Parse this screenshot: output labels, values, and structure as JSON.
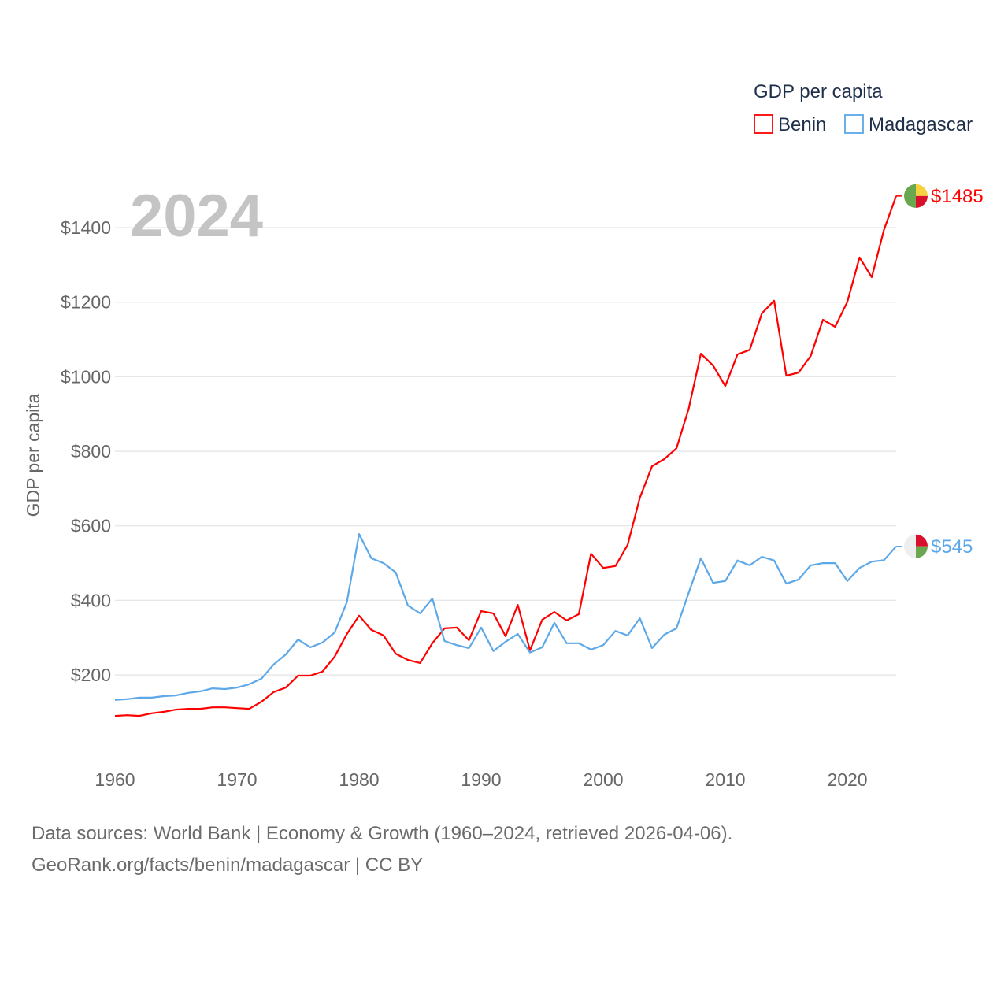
{
  "chart_data": {
    "type": "line",
    "title": "GDP per capita",
    "ylabel": "GDP per capita",
    "xlabel": "",
    "watermark_year": "2024",
    "ylim": [
      0,
      1500
    ],
    "xlim": [
      1960,
      2024
    ],
    "yticks": [
      200,
      400,
      600,
      800,
      1000,
      1200,
      1400
    ],
    "ytick_labels": [
      "$200",
      "$400",
      "$600",
      "$800",
      "$1000",
      "$1200",
      "$1400"
    ],
    "xticks": [
      1960,
      1970,
      1980,
      1990,
      2000,
      2010,
      2020
    ],
    "xtick_labels": [
      "1960",
      "1970",
      "1980",
      "1990",
      "2000",
      "2010",
      "2020"
    ],
    "grid": true,
    "legend_position": "top-right",
    "legend_title": "GDP per capita",
    "x": [
      1960,
      1961,
      1962,
      1963,
      1964,
      1965,
      1966,
      1967,
      1968,
      1969,
      1970,
      1971,
      1972,
      1973,
      1974,
      1975,
      1976,
      1977,
      1978,
      1979,
      1980,
      1981,
      1982,
      1983,
      1984,
      1985,
      1986,
      1987,
      1988,
      1989,
      1990,
      1991,
      1992,
      1993,
      1994,
      1995,
      1996,
      1997,
      1998,
      1999,
      2000,
      2001,
      2002,
      2003,
      2004,
      2005,
      2006,
      2007,
      2008,
      2009,
      2010,
      2011,
      2012,
      2013,
      2014,
      2015,
      2016,
      2017,
      2018,
      2019,
      2020,
      2021,
      2022,
      2023,
      2024
    ],
    "series": [
      {
        "name": "Benin",
        "color": "#ff0000",
        "end_label": "$1485",
        "values": [
          90,
          92,
          90,
          97,
          101,
          107,
          109,
          109,
          113,
          113,
          111,
          109,
          128,
          154,
          166,
          198,
          198,
          209,
          249,
          310,
          359,
          321,
          306,
          257,
          240,
          232,
          285,
          325,
          327,
          293,
          371,
          365,
          304,
          388,
          266,
          348,
          369,
          346,
          363,
          525,
          487,
          492,
          549,
          675,
          760,
          779,
          808,
          914,
          1062,
          1030,
          975,
          1060,
          1072,
          1170,
          1204,
          1003,
          1011,
          1056,
          1153,
          1134,
          1201,
          1320,
          1267,
          1394,
          1485
        ]
      },
      {
        "name": "Madagascar",
        "color": "#5ca8e8",
        "end_label": "$545",
        "values": [
          133,
          135,
          139,
          139,
          143,
          145,
          152,
          156,
          164,
          162,
          166,
          175,
          190,
          228,
          255,
          295,
          274,
          287,
          314,
          395,
          578,
          513,
          500,
          475,
          386,
          365,
          405,
          291,
          280,
          272,
          327,
          264,
          289,
          310,
          260,
          274,
          340,
          285,
          285,
          268,
          280,
          318,
          306,
          352,
          272,
          308,
          325,
          420,
          513,
          447,
          452,
          507,
          494,
          517,
          507,
          445,
          456,
          494,
          500,
          500,
          452,
          487,
          504,
          508,
          545
        ]
      }
    ]
  },
  "footer": {
    "line1": "Data sources: World Bank | Economy & Growth (1960–2024, retrieved 2026-04-06).",
    "line2": "GeoRank.org/facts/benin/madagascar | CC BY"
  }
}
